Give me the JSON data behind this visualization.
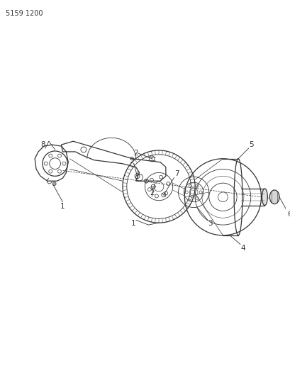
{
  "title_code": "5159 1200",
  "bg_color": "#ffffff",
  "line_color": "#333333",
  "label_color": "#333333",
  "fig_width": 4.1,
  "fig_height": 5.33,
  "dpi": 100
}
